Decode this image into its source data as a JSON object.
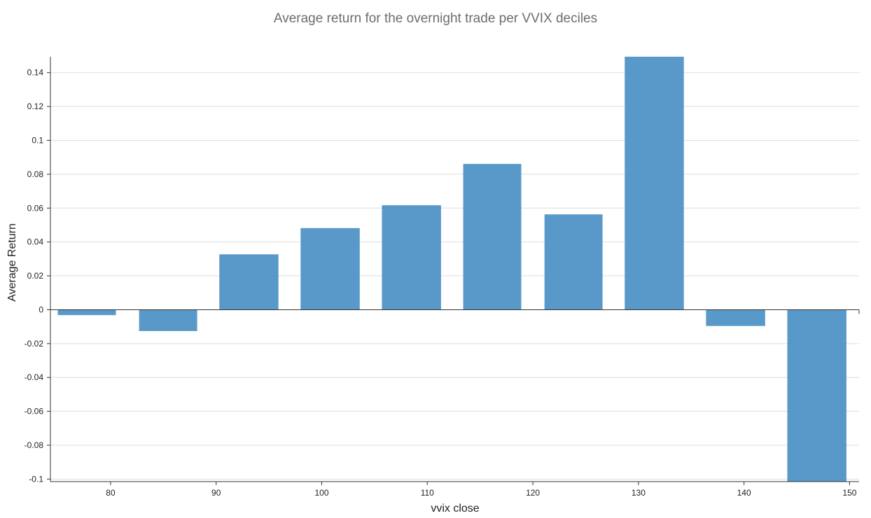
{
  "chart_data": {
    "type": "bar",
    "title": "Average return for the overnight trade per VVIX deciles",
    "xlabel": "vvix close",
    "ylabel": "Average Return",
    "x_ticks": [
      80,
      90,
      100,
      110,
      120,
      130,
      140,
      150
    ],
    "y_ticks": [
      -0.1,
      -0.08,
      -0.06,
      -0.04,
      -0.02,
      0,
      0.02,
      0.04,
      0.06,
      0.08,
      0.1,
      0.12,
      0.14
    ],
    "y_tick_labels": [
      "-0.1",
      "-0.08",
      "-0.06",
      "-0.04",
      "-0.02",
      "0",
      "0.02",
      "0.04",
      "0.06",
      "0.08",
      "0.1",
      "0.12",
      "0.14"
    ],
    "xlim": [
      74.3,
      150.9
    ],
    "ylim": [
      -0.1015,
      0.1494
    ],
    "bars": [
      {
        "x0": 75.0,
        "x1": 80.5,
        "value": -0.0032
      },
      {
        "x0": 82.7,
        "x1": 88.2,
        "value": -0.0126
      },
      {
        "x0": 90.3,
        "x1": 95.9,
        "value": 0.0327
      },
      {
        "x0": 98.0,
        "x1": 103.6,
        "value": 0.0482
      },
      {
        "x0": 105.7,
        "x1": 111.3,
        "value": 0.0617
      },
      {
        "x0": 113.4,
        "x1": 118.9,
        "value": 0.0861
      },
      {
        "x0": 121.1,
        "x1": 126.6,
        "value": 0.0563
      },
      {
        "x0": 128.7,
        "x1": 134.3,
        "value": 0.1494
      },
      {
        "x0": 136.4,
        "x1": 142.0,
        "value": -0.0096
      },
      {
        "x0": 144.1,
        "x1": 149.7,
        "value": -0.1015
      }
    ],
    "bar_color": "#4a90c4",
    "grid": true,
    "grid_color": "#dddddd",
    "legend": "none"
  }
}
